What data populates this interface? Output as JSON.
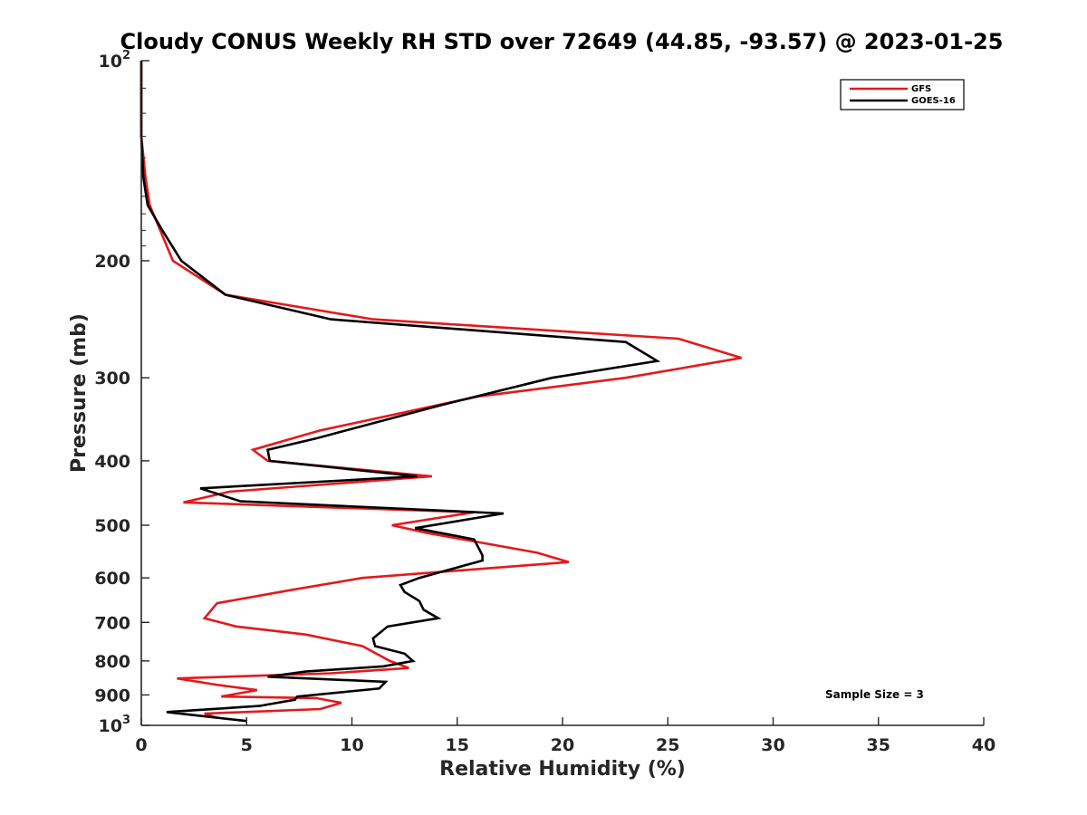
{
  "chart_data": {
    "type": "line",
    "title": "Cloudy CONUS Weekly RH STD over 72649 (44.85, -93.57) @ 2023-01-25",
    "xlabel": "Relative Humidity (%)",
    "ylabel": "Pressure (mb)",
    "xlim": [
      0,
      40
    ],
    "ylim": [
      100,
      1000
    ],
    "y_scale": "log",
    "y_reversed": true,
    "x_ticks": [
      0,
      5,
      10,
      15,
      20,
      25,
      30,
      35,
      40
    ],
    "y_ticks": [
      {
        "value": 100,
        "label": "10",
        "exp": "2"
      },
      {
        "value": 200,
        "label": "200"
      },
      {
        "value": 300,
        "label": "300"
      },
      {
        "value": 400,
        "label": "400"
      },
      {
        "value": 500,
        "label": "500"
      },
      {
        "value": 600,
        "label": "600"
      },
      {
        "value": 700,
        "label": "700"
      },
      {
        "value": 800,
        "label": "800"
      },
      {
        "value": 900,
        "label": "900"
      },
      {
        "value": 1000,
        "label": "10",
        "exp": "3"
      }
    ],
    "series": [
      {
        "name": "GFS",
        "color": "#e31a1c",
        "points": [
          [
            0.0,
            100
          ],
          [
            0.0,
            130
          ],
          [
            0.2,
            150
          ],
          [
            0.4,
            165
          ],
          [
            0.9,
            180
          ],
          [
            1.5,
            200
          ],
          [
            4.0,
            225
          ],
          [
            11.0,
            245
          ],
          [
            25.5,
            262
          ],
          [
            28.5,
            280
          ],
          [
            23.0,
            300
          ],
          [
            16.0,
            320
          ],
          [
            8.5,
            360
          ],
          [
            5.3,
            385
          ],
          [
            6.0,
            400
          ],
          [
            13.8,
            422
          ],
          [
            4.2,
            445
          ],
          [
            2.0,
            462
          ],
          [
            15.8,
            478
          ],
          [
            11.9,
            500
          ],
          [
            13.5,
            513
          ],
          [
            18.8,
            550
          ],
          [
            20.3,
            568
          ],
          [
            10.5,
            600
          ],
          [
            7.2,
            625
          ],
          [
            3.6,
            655
          ],
          [
            3.0,
            690
          ],
          [
            4.5,
            710
          ],
          [
            7.8,
            730
          ],
          [
            10.5,
            760
          ],
          [
            11.8,
            800
          ],
          [
            12.7,
            820
          ],
          [
            9.0,
            835
          ],
          [
            1.7,
            850
          ],
          [
            3.7,
            870
          ],
          [
            5.5,
            885
          ],
          [
            3.8,
            905
          ],
          [
            8.3,
            910
          ],
          [
            9.5,
            925
          ],
          [
            8.5,
            945
          ],
          [
            3.0,
            960
          ],
          [
            3.6,
            975
          ]
        ]
      },
      {
        "name": "GOES-16",
        "color": "#000000",
        "points": [
          [
            0.0,
            100
          ],
          [
            0.0,
            130
          ],
          [
            0.1,
            150
          ],
          [
            0.3,
            165
          ],
          [
            1.0,
            180
          ],
          [
            1.9,
            200
          ],
          [
            4.0,
            225
          ],
          [
            9.0,
            245
          ],
          [
            23.0,
            265
          ],
          [
            24.5,
            283
          ],
          [
            19.5,
            300
          ],
          [
            14.2,
            330
          ],
          [
            8.3,
            370
          ],
          [
            6.0,
            385
          ],
          [
            6.1,
            400
          ],
          [
            13.1,
            422
          ],
          [
            2.8,
            440
          ],
          [
            4.7,
            460
          ],
          [
            17.2,
            480
          ],
          [
            13.0,
            505
          ],
          [
            15.8,
            525
          ],
          [
            16.2,
            555
          ],
          [
            16.2,
            565
          ],
          [
            13.2,
            600
          ],
          [
            12.3,
            615
          ],
          [
            12.5,
            630
          ],
          [
            13.2,
            650
          ],
          [
            13.4,
            670
          ],
          [
            14.1,
            690
          ],
          [
            11.7,
            710
          ],
          [
            11.0,
            740
          ],
          [
            11.1,
            760
          ],
          [
            12.5,
            780
          ],
          [
            12.9,
            800
          ],
          [
            11.5,
            815
          ],
          [
            7.8,
            830
          ],
          [
            6.0,
            845
          ],
          [
            11.6,
            860
          ],
          [
            11.3,
            880
          ],
          [
            7.4,
            905
          ],
          [
            7.3,
            915
          ],
          [
            5.6,
            935
          ],
          [
            1.2,
            955
          ],
          [
            5.0,
            985
          ]
        ]
      }
    ],
    "legend": {
      "position": "top-right",
      "entries": [
        "GFS",
        "GOES-16"
      ]
    },
    "annotations": [
      "Sample Size = 3"
    ],
    "grid": false
  }
}
